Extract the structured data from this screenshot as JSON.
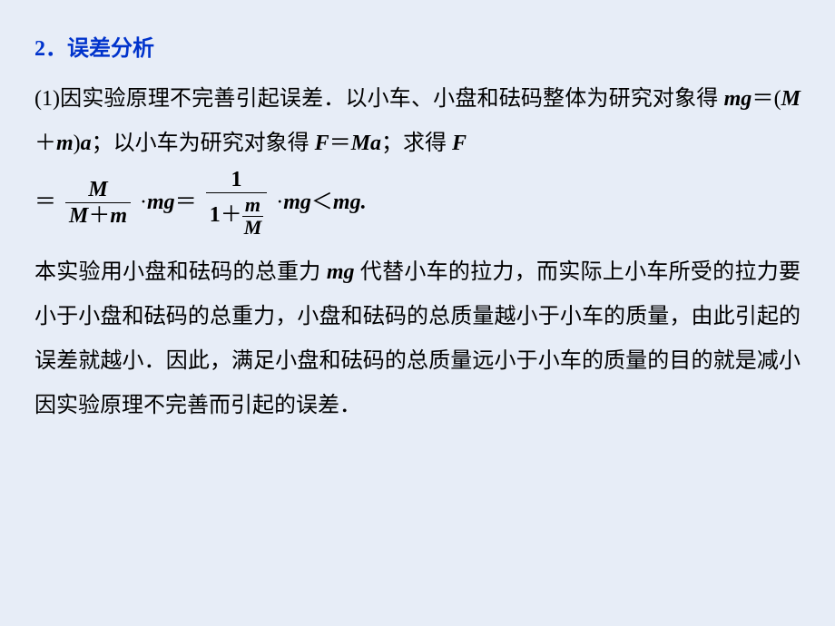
{
  "background_color": "#e7edf7",
  "text_color": "#000000",
  "heading_color": "#0033cc",
  "font_size_body": 24,
  "font_size_nested": 22,
  "line_height": 2.05,
  "heading": "2．误差分析",
  "para1_a": "(1)因实验原理不完善引起误差．以小车、小盘和砝码整体为研究对象得 ",
  "eq1_lhs": "mg",
  "eq1_eq": "＝",
  "eq1_open": "(",
  "eq1_M": "M",
  "eq1_plus": "＋",
  "eq1_m": "m",
  "eq1_close": ")",
  "eq1_a": "a",
  "para1_b": "；以小车为研究对象得 ",
  "eq2_F": "F",
  "eq2_eq": "＝",
  "eq2_Ma": "Ma",
  "para1_c": "；求得 ",
  "eq3_F": "F",
  "formula": {
    "lead_eq": "＝",
    "frac1_num": "M",
    "frac1_den_M": "M",
    "frac1_den_plus": "＋",
    "frac1_den_m": "m",
    "dot1": "·",
    "mg1": "mg",
    "mid_eq": "＝",
    "frac2_num": "1",
    "frac2_den_1": "1",
    "frac2_den_plus": "＋",
    "nested_num": "m",
    "nested_den": "M",
    "dot2": "·",
    "mg2": "mg",
    "lt": "＜",
    "mg3": "mg",
    "period": "."
  },
  "para2_a": "本实验用小盘和砝码的总重力 ",
  "para2_mg": "mg",
  "para2_b": " 代替小车的拉力，而实际上小车所受的拉力要小于小盘和砝码的总重力，小盘和砝码的总质量越小于小车的质量，由此引起的误差就越小．因此，满足小盘和砝码的总质量远小于小车的质量的目的就是减小因实验原理不完善而引起的误差．"
}
